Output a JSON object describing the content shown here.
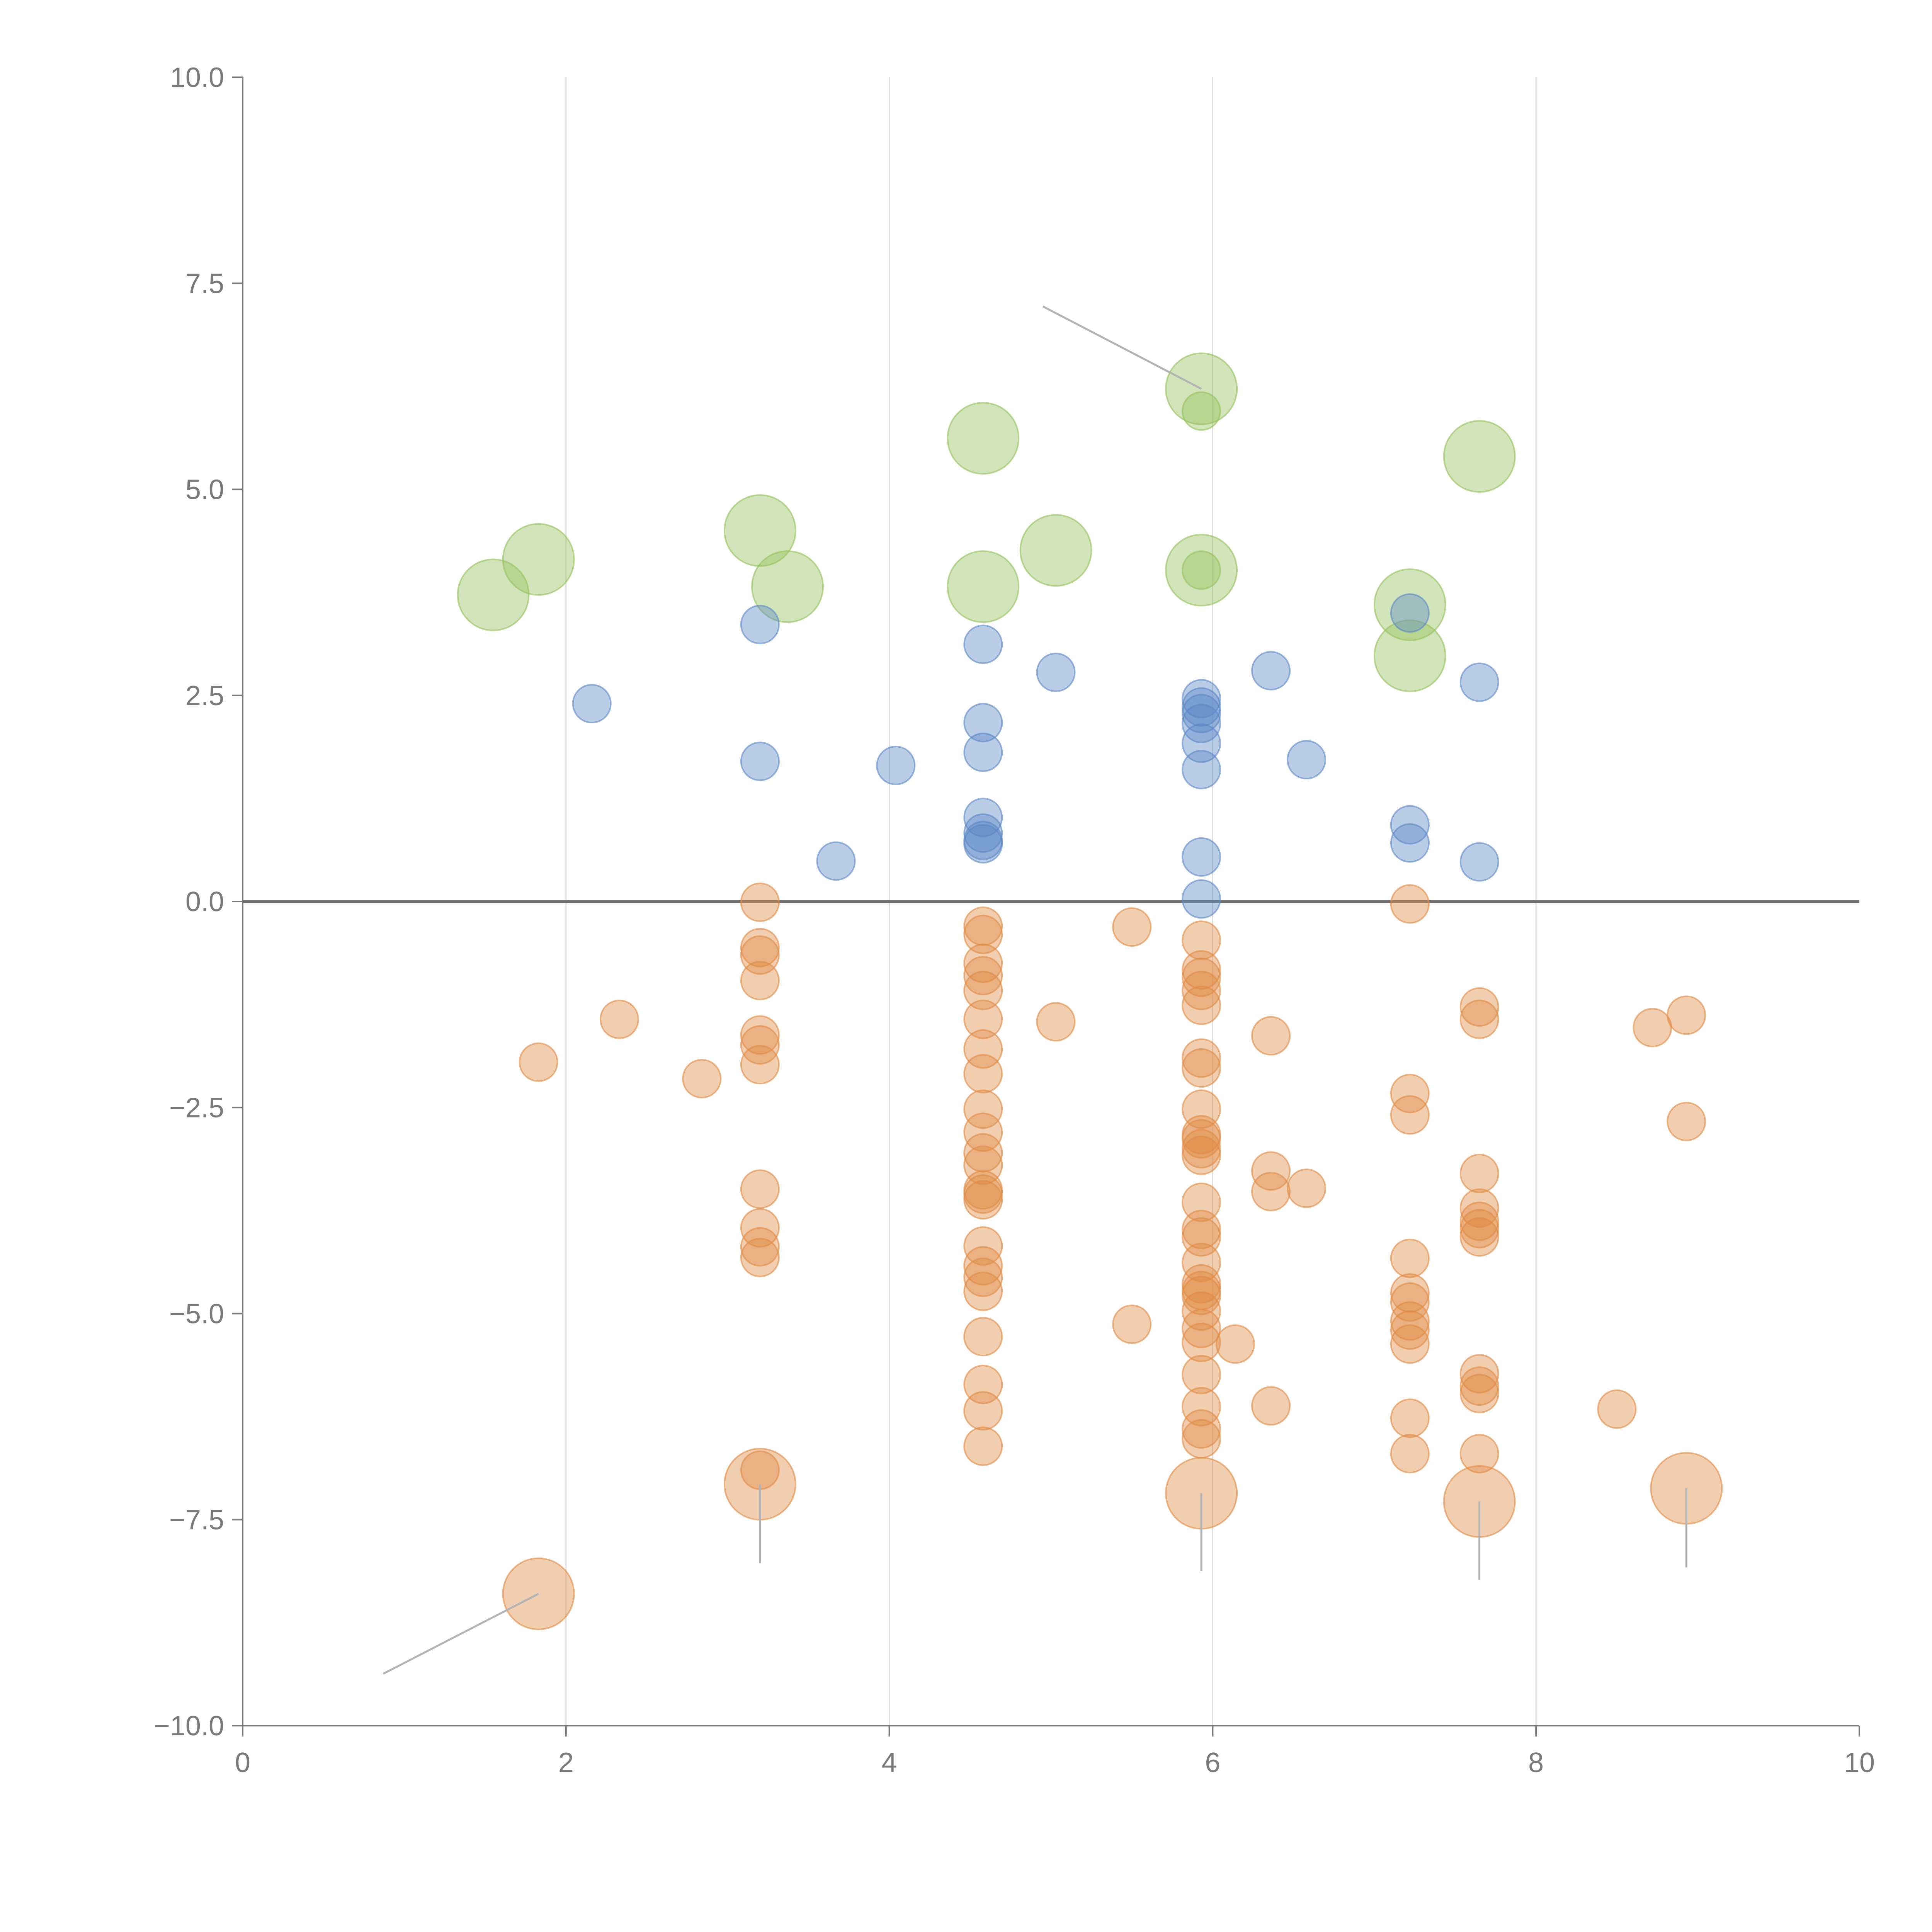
{
  "chart_data": {
    "type": "scatter",
    "title": "",
    "xlabel": "",
    "ylabel": "",
    "xlim": [
      0,
      10
    ],
    "ylim": [
      -10,
      10
    ],
    "x_ticks": [
      0,
      2,
      4,
      6,
      8,
      10
    ],
    "x_tick_labels": [
      "0",
      "2",
      "4",
      "6",
      "8",
      "10"
    ],
    "y_ticks": [
      -10,
      -7.5,
      -5,
      -2.5,
      0,
      2.5,
      5,
      7.5,
      10
    ],
    "y_tick_labels": [
      "−10.0",
      "−7.5",
      "−5.0",
      "−2.5",
      "0.0",
      "2.5",
      "5.0",
      "7.5",
      "10.0"
    ],
    "grid": "vertical lines at x ticks",
    "reference_line": 0,
    "colors": {
      "green": "#93c05a",
      "blue": "#5b87c5",
      "orange": "#e08a42",
      "axis": "#7a7a7a",
      "grid": "#dcdcdc",
      "leader": "#b3b3b3"
    },
    "series": [
      {
        "name": "green",
        "color": "#93c05a",
        "size": "large",
        "points": [
          [
            1.55,
            3.72
          ],
          [
            1.83,
            4.15
          ],
          [
            3.2,
            4.5
          ],
          [
            3.37,
            3.82
          ],
          [
            4.58,
            5.62
          ],
          [
            4.58,
            3.82
          ],
          [
            5.03,
            4.26
          ],
          [
            5.93,
            6.22
          ],
          [
            5.93,
            4.02
          ],
          [
            7.22,
            3.6
          ],
          [
            7.22,
            2.98
          ],
          [
            7.65,
            5.4
          ]
        ]
      },
      {
        "name": "green",
        "color": "#93c05a",
        "size": "small",
        "points": [
          [
            5.93,
            5.95
          ],
          [
            5.93,
            4.02
          ]
        ]
      },
      {
        "name": "blue",
        "color": "#5b87c5",
        "size": "small",
        "points": [
          [
            2.16,
            2.4
          ],
          [
            3.2,
            3.36
          ],
          [
            3.2,
            1.7
          ],
          [
            3.67,
            0.49
          ],
          [
            4.04,
            1.65
          ],
          [
            4.58,
            3.12
          ],
          [
            4.58,
            2.17
          ],
          [
            4.58,
            1.81
          ],
          [
            4.58,
            1.02
          ],
          [
            4.58,
            0.83
          ],
          [
            4.58,
            0.74
          ],
          [
            4.58,
            0.7
          ],
          [
            5.03,
            2.78
          ],
          [
            5.93,
            2.46
          ],
          [
            5.93,
            2.36
          ],
          [
            5.93,
            2.28
          ],
          [
            5.93,
            2.16
          ],
          [
            5.93,
            1.92
          ],
          [
            5.93,
            1.6
          ],
          [
            5.93,
            0.54
          ],
          [
            5.93,
            0.03
          ],
          [
            6.36,
            2.8
          ],
          [
            6.58,
            1.72
          ],
          [
            7.22,
            3.5
          ],
          [
            7.22,
            0.93
          ],
          [
            7.22,
            0.71
          ],
          [
            7.65,
            2.66
          ],
          [
            7.65,
            0.48
          ]
        ]
      },
      {
        "name": "orange",
        "color": "#e08a42",
        "size": "small",
        "points": [
          [
            1.83,
            -1.95
          ],
          [
            2.33,
            -1.43
          ],
          [
            2.84,
            -2.15
          ],
          [
            3.2,
            -0.01
          ],
          [
            3.2,
            -0.56
          ],
          [
            3.2,
            -0.65
          ],
          [
            3.2,
            -0.96
          ],
          [
            3.2,
            -1.62
          ],
          [
            3.2,
            -1.74
          ],
          [
            3.2,
            -1.98
          ],
          [
            3.2,
            -3.49
          ],
          [
            3.2,
            -3.96
          ],
          [
            3.2,
            -4.19
          ],
          [
            3.2,
            -4.32
          ],
          [
            3.2,
            -6.9
          ],
          [
            4.58,
            -0.3
          ],
          [
            4.58,
            -0.4
          ],
          [
            4.58,
            -0.75
          ],
          [
            4.58,
            -0.9
          ],
          [
            4.58,
            -1.08
          ],
          [
            4.58,
            -1.43
          ],
          [
            4.58,
            -1.79
          ],
          [
            4.58,
            -2.09
          ],
          [
            4.58,
            -2.52
          ],
          [
            4.58,
            -2.8
          ],
          [
            4.58,
            -3.05
          ],
          [
            4.58,
            -3.2
          ],
          [
            4.58,
            -3.5
          ],
          [
            4.58,
            -3.55
          ],
          [
            4.58,
            -3.62
          ],
          [
            4.58,
            -4.18
          ],
          [
            4.58,
            -4.42
          ],
          [
            4.58,
            -4.56
          ],
          [
            4.58,
            -4.73
          ],
          [
            4.58,
            -5.28
          ],
          [
            4.58,
            -5.86
          ],
          [
            4.58,
            -6.18
          ],
          [
            4.58,
            -6.61
          ],
          [
            5.03,
            -1.46
          ],
          [
            5.5,
            -0.31
          ],
          [
            5.5,
            -5.13
          ],
          [
            5.93,
            -0.47
          ],
          [
            5.93,
            -0.83
          ],
          [
            5.93,
            -0.92
          ],
          [
            5.93,
            -1.08
          ],
          [
            5.93,
            -1.26
          ],
          [
            5.93,
            -1.9
          ],
          [
            5.93,
            -2.02
          ],
          [
            5.93,
            -2.52
          ],
          [
            5.93,
            -2.83
          ],
          [
            5.93,
            -2.88
          ],
          [
            5.93,
            -3.0
          ],
          [
            5.93,
            -3.08
          ],
          [
            5.93,
            -3.65
          ],
          [
            5.93,
            -3.98
          ],
          [
            5.93,
            -4.07
          ],
          [
            5.93,
            -4.38
          ],
          [
            5.93,
            -4.64
          ],
          [
            5.93,
            -4.72
          ],
          [
            5.93,
            -4.78
          ],
          [
            5.93,
            -4.97
          ],
          [
            5.93,
            -5.18
          ],
          [
            5.93,
            -5.35
          ],
          [
            5.93,
            -5.74
          ],
          [
            5.93,
            -6.13
          ],
          [
            5.93,
            -6.4
          ],
          [
            5.93,
            -6.52
          ],
          [
            6.14,
            -5.37
          ],
          [
            6.36,
            -1.63
          ],
          [
            6.36,
            -3.27
          ],
          [
            6.36,
            -3.52
          ],
          [
            6.36,
            -6.12
          ],
          [
            6.58,
            -3.48
          ],
          [
            7.22,
            -0.03
          ],
          [
            7.22,
            -2.33
          ],
          [
            7.22,
            -2.59
          ],
          [
            7.22,
            -4.33
          ],
          [
            7.22,
            -4.75
          ],
          [
            7.22,
            -4.86
          ],
          [
            7.22,
            -5.09
          ],
          [
            7.22,
            -5.2
          ],
          [
            7.22,
            -5.37
          ],
          [
            7.22,
            -6.27
          ],
          [
            7.22,
            -6.7
          ],
          [
            7.65,
            -1.28
          ],
          [
            7.65,
            -1.43
          ],
          [
            7.65,
            -3.3
          ],
          [
            7.65,
            -3.72
          ],
          [
            7.65,
            -3.88
          ],
          [
            7.65,
            -3.97
          ],
          [
            7.65,
            -4.07
          ],
          [
            7.65,
            -5.73
          ],
          [
            7.65,
            -5.88
          ],
          [
            7.65,
            -5.97
          ],
          [
            7.65,
            -6.7
          ],
          [
            8.5,
            -6.16
          ],
          [
            8.72,
            -1.53
          ],
          [
            8.93,
            -1.38
          ],
          [
            8.93,
            -2.67
          ]
        ]
      },
      {
        "name": "orange",
        "color": "#e08a42",
        "size": "large",
        "points": [
          [
            1.83,
            -8.4
          ],
          [
            3.2,
            -7.07
          ],
          [
            5.93,
            -7.18
          ],
          [
            7.65,
            -7.28
          ],
          [
            8.93,
            -7.12
          ]
        ]
      }
    ],
    "annotations": [
      {
        "from": [
          5.93,
          6.22
        ],
        "to": [
          4.95,
          7.22
        ],
        "color": "#b3b3b3"
      },
      {
        "from": [
          1.83,
          -8.4
        ],
        "to": [
          0.87,
          -9.37
        ],
        "color": "#b3b3b3"
      },
      {
        "from": [
          3.2,
          -7.07
        ],
        "to": [
          3.2,
          -8.03
        ],
        "color": "#b3b3b3"
      },
      {
        "from": [
          5.93,
          -7.18
        ],
        "to": [
          5.93,
          -8.12
        ],
        "color": "#b3b3b3"
      },
      {
        "from": [
          7.65,
          -7.28
        ],
        "to": [
          7.65,
          -8.23
        ],
        "color": "#b3b3b3"
      },
      {
        "from": [
          8.93,
          -7.12
        ],
        "to": [
          8.93,
          -8.08
        ],
        "color": "#b3b3b3"
      }
    ]
  }
}
